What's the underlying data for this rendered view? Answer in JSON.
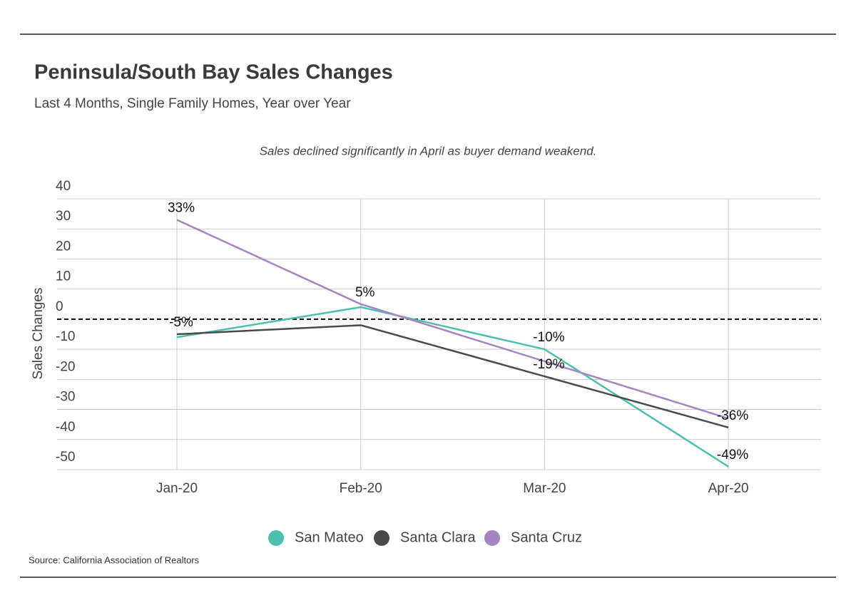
{
  "chart_data": {
    "type": "line",
    "title": "Peninsula/South Bay Sales Changes",
    "subtitle": "Last 4 Months, Single Family Homes, Year over Year",
    "annotation": "Sales declined significantly in April as buyer demand weakend.",
    "y_label": "Sales Changes",
    "source": "Source:  California Association of Realtors",
    "categories": [
      "Jan-20",
      "Feb-20",
      "Mar-20",
      "Apr-20"
    ],
    "series": [
      {
        "name": "San Mateo",
        "color": "#4dbfad",
        "values": [
          -6,
          4,
          -10,
          -49
        ],
        "value_labels": [
          null,
          null,
          "-10%",
          "-49%"
        ]
      },
      {
        "name": "Santa Clara",
        "color": "#4a4a4a",
        "values": [
          -5,
          -2,
          -19,
          -36
        ],
        "value_labels": [
          "-5%",
          null,
          "-19%",
          "-36%"
        ]
      },
      {
        "name": "Santa Cruz",
        "color": "#a585c1",
        "values": [
          33,
          5,
          -14,
          -33
        ],
        "value_labels": [
          "33%",
          "5%",
          null,
          null
        ]
      }
    ],
    "ylim": [
      -50,
      40
    ],
    "yticks": [
      40,
      30,
      20,
      10,
      0,
      -10,
      -20,
      -30,
      -40,
      -50
    ],
    "grid": true,
    "legend": "bottom"
  }
}
